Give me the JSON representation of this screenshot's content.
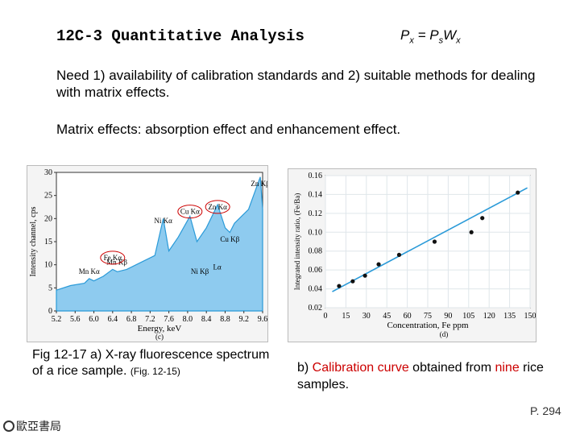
{
  "title": "12C-3 Quantitative Analysis",
  "formula": {
    "p": "P",
    "x": "x",
    "eq": " = ",
    "ps": "P",
    "s": "s",
    "w": "W",
    "wx": "x"
  },
  "paragraph1": "Need 1) availability of calibration standards and 2) suitable methods for dealing with matrix effects.",
  "paragraph2": "Matrix effects: absorption effect and enhancement effect.",
  "caption_left": {
    "main": "Fig 12-17 a) X-ray fluorescence spectrum of a rice sample.",
    "ref": "(Fig. 12-15)"
  },
  "caption_right": {
    "pre": "b) ",
    "highlight1": "Calibration curve",
    "mid": " obtained from ",
    "highlight2": "nine",
    "post": " rice samples."
  },
  "page_number": "P. 294",
  "logo_text": "歐亞書局",
  "colors": {
    "accent_red": "#cc0000",
    "line_blue": "#2a9ad8",
    "fill_blue": "#8ecbef"
  },
  "chart_data": [
    {
      "type": "area",
      "panel_label": "(c)",
      "xlabel": "Energy, keV",
      "ylabel": "Intensity channel, cps",
      "x_ticks": [
        "5.2",
        "5.6",
        "6.0",
        "6.4",
        "6.8",
        "7.2",
        "7.6",
        "8.0",
        "8.4",
        "8.8",
        "9.2",
        "9.6"
      ],
      "y_ticks": [
        "0",
        "5",
        "10",
        "15",
        "20",
        "25",
        "30"
      ],
      "xlim": [
        5.2,
        9.6
      ],
      "ylim": [
        0,
        30
      ],
      "annotations": [
        {
          "label": "Zn Kβ",
          "x": 9.55,
          "y": 27
        },
        {
          "label": "Zn Kα",
          "x": 8.64,
          "y": 22
        },
        {
          "label": "Cu Kα",
          "x": 8.05,
          "y": 21
        },
        {
          "label": "Ni Kα",
          "x": 7.48,
          "y": 19
        },
        {
          "label": "Cu Kβ",
          "x": 8.9,
          "y": 15
        },
        {
          "label": "Mn Kβ",
          "x": 6.49,
          "y": 10
        },
        {
          "label": "Fe Kα",
          "x": 6.4,
          "y": 11
        },
        {
          "label": "Mn Kα",
          "x": 5.9,
          "y": 8
        },
        {
          "label": "Lα",
          "x": 8.63,
          "y": 9
        },
        {
          "label": "Ni Kβ",
          "x": 8.26,
          "y": 8
        }
      ],
      "spectrum": [
        [
          5.2,
          4.5
        ],
        [
          5.5,
          5.5
        ],
        [
          5.8,
          6.0
        ],
        [
          5.9,
          7.0
        ],
        [
          6.0,
          6.5
        ],
        [
          6.2,
          7.5
        ],
        [
          6.4,
          9.0
        ],
        [
          6.5,
          8.5
        ],
        [
          6.7,
          9.0
        ],
        [
          7.0,
          10.5
        ],
        [
          7.3,
          12.0
        ],
        [
          7.48,
          20.0
        ],
        [
          7.6,
          13.0
        ],
        [
          7.8,
          16.0
        ],
        [
          8.05,
          20.5
        ],
        [
          8.2,
          15.0
        ],
        [
          8.4,
          18.0
        ],
        [
          8.64,
          23.0
        ],
        [
          8.8,
          18.0
        ],
        [
          8.9,
          17.0
        ],
        [
          9.0,
          19.0
        ],
        [
          9.3,
          22.0
        ],
        [
          9.55,
          29.0
        ],
        [
          9.6,
          22.0
        ]
      ]
    },
    {
      "type": "scatter",
      "panel_label": "(d)",
      "xlabel": "Concentration, Fe ppm",
      "ylabel": "Integrated intensity ratio, (Fe/Ba)",
      "x_ticks": [
        "0",
        "15",
        "30",
        "45",
        "60",
        "75",
        "90",
        "105",
        "120",
        "135",
        "150"
      ],
      "y_ticks": [
        "0.02",
        "0.04",
        "0.06",
        "0.08",
        "0.10",
        "0.12",
        "0.14",
        "0.16"
      ],
      "xlim": [
        0,
        150
      ],
      "ylim": [
        0.02,
        0.16
      ],
      "points": [
        {
          "x": 10,
          "y": 0.043
        },
        {
          "x": 20,
          "y": 0.048
        },
        {
          "x": 29,
          "y": 0.054
        },
        {
          "x": 39,
          "y": 0.066
        },
        {
          "x": 54,
          "y": 0.076
        },
        {
          "x": 80,
          "y": 0.09
        },
        {
          "x": 107,
          "y": 0.1
        },
        {
          "x": 115,
          "y": 0.115
        },
        {
          "x": 141,
          "y": 0.142
        }
      ],
      "fit_line": [
        [
          5,
          0.037
        ],
        [
          148,
          0.147
        ]
      ]
    }
  ]
}
